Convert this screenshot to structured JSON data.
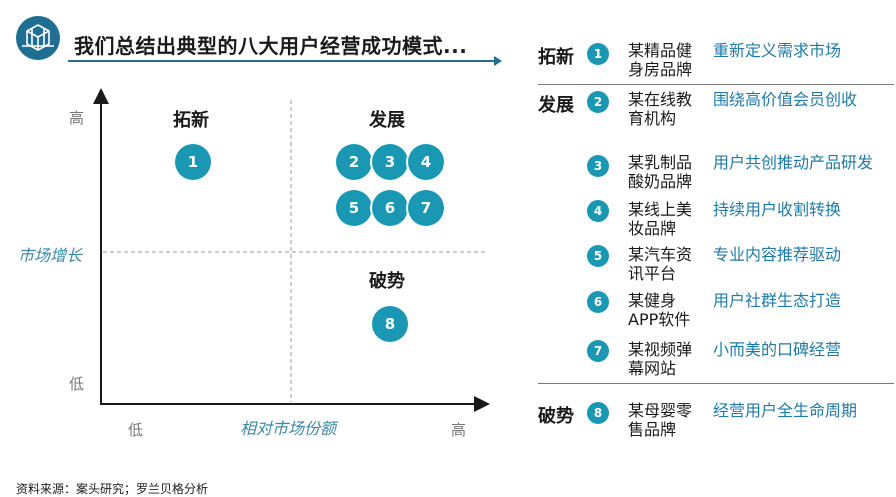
{
  "header": {
    "title": "我们总结出典型的八大用户经营成功模式...",
    "logo_icon": "crystal-cube-icon"
  },
  "colors": {
    "accent": "#1f6f93",
    "bubble": "#1a98b3",
    "axis_label": "#3b88a8",
    "description": "#1f7aa8"
  },
  "matrix": {
    "y_axis_label": "市场增长",
    "x_axis_label": "相对市场份额",
    "y_high": "高",
    "y_low": "低",
    "x_low": "低",
    "x_high": "高",
    "quadrants": {
      "top_left": "拓新",
      "top_right": "发展",
      "bottom_right": "破势"
    },
    "bubbles": [
      "1",
      "2",
      "3",
      "4",
      "5",
      "6",
      "7",
      "8"
    ]
  },
  "cases": {
    "groups": [
      "拓新",
      "发展",
      "破势"
    ],
    "items": [
      {
        "num": "1",
        "brand": "某精品健身房品牌",
        "desc": "重新定义需求市场"
      },
      {
        "num": "2",
        "brand": "某在线教育机构",
        "desc": "围绕高价值会员创收"
      },
      {
        "num": "3",
        "brand": "某乳制品酸奶品牌",
        "desc": "用户共创推动产品研发"
      },
      {
        "num": "4",
        "brand": "某线上美妆品牌",
        "desc": "持续用户收割转换"
      },
      {
        "num": "5",
        "brand": "某汽车资讯平台",
        "desc": "专业内容推荐驱动"
      },
      {
        "num": "6",
        "brand": "某健身APP软件",
        "desc": "用户社群生态打造"
      },
      {
        "num": "7",
        "brand": "某视频弹幕网站",
        "desc": "小而美的口碑经营"
      },
      {
        "num": "8",
        "brand": "某母婴零售品牌",
        "desc": "经营用户全生命周期"
      }
    ]
  },
  "footer": {
    "source": "资料来源：案头研究；罗兰贝格分析"
  }
}
